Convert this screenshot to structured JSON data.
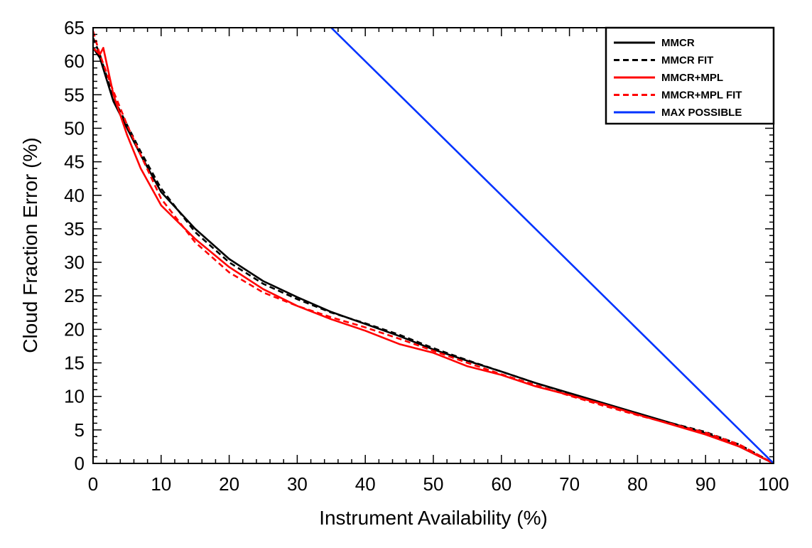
{
  "chart_data": {
    "type": "line",
    "title": "",
    "xlabel": "Instrument Availability (%)",
    "ylabel": "Cloud Fraction Error (%)",
    "xlim": [
      0,
      100
    ],
    "ylim": [
      0,
      65
    ],
    "xticks": [
      0,
      10,
      20,
      30,
      40,
      50,
      60,
      70,
      80,
      90,
      100
    ],
    "yticks": [
      0,
      5,
      10,
      15,
      20,
      25,
      30,
      35,
      40,
      45,
      50,
      55,
      60,
      65
    ],
    "grid": false,
    "legend": "top-right",
    "series": [
      {
        "name": "MMCR",
        "color": "#000000",
        "dash": "solid",
        "x": [
          0,
          1,
          3,
          5,
          7,
          10,
          15,
          20,
          25,
          30,
          35,
          40,
          45,
          50,
          55,
          60,
          65,
          70,
          75,
          80,
          85,
          90,
          95,
          100
        ],
        "y": [
          62,
          60.5,
          54,
          50,
          46,
          40.5,
          35,
          30.5,
          27.2,
          24.8,
          22.6,
          20.8,
          19,
          17,
          15.3,
          13.7,
          12,
          10.5,
          9,
          7.5,
          6,
          4.5,
          2.5,
          0
        ]
      },
      {
        "name": "MMCR FIT",
        "color": "#000000",
        "dash": "dashed",
        "x": [
          0,
          1,
          3,
          5,
          7,
          10,
          15,
          20,
          25,
          30,
          35,
          40,
          45,
          50,
          55,
          60,
          65,
          70,
          75,
          80,
          85,
          90,
          95,
          100
        ],
        "y": [
          63.5,
          61,
          54.5,
          50.5,
          46.5,
          41,
          34.5,
          30,
          26.8,
          24.5,
          22.5,
          20.9,
          19.2,
          17.2,
          15.4,
          13.7,
          12,
          10.4,
          8.9,
          7.4,
          6,
          4.7,
          2.8,
          0
        ]
      },
      {
        "name": "MMCR+MPL",
        "color": "#ff0000",
        "dash": "solid",
        "x": [
          0,
          1,
          1.5,
          3,
          5,
          7,
          10,
          15,
          20,
          25,
          30,
          35,
          40,
          45,
          50,
          55,
          60,
          65,
          70,
          75,
          80,
          85,
          90,
          95,
          100
        ],
        "y": [
          62,
          61,
          62,
          55,
          49,
          44,
          38.5,
          33.5,
          29.3,
          26,
          23.5,
          21.5,
          19.8,
          17.8,
          16.5,
          14.5,
          13.2,
          11.5,
          10.2,
          8.8,
          7.3,
          5.8,
          4.3,
          2.5,
          0
        ]
      },
      {
        "name": "MMCR+MPL FIT",
        "color": "#ff0000",
        "dash": "dashed",
        "x": [
          0,
          1,
          3,
          5,
          7,
          10,
          15,
          20,
          25,
          30,
          35,
          40,
          45,
          50,
          55,
          60,
          65,
          70,
          75,
          80,
          85,
          90,
          95,
          100
        ],
        "y": [
          64.5,
          61,
          55.5,
          50.5,
          46,
          39.5,
          33,
          28.5,
          25.5,
          23.5,
          21.8,
          20.3,
          18.6,
          16.8,
          15,
          13.3,
          11.7,
          10.1,
          8.6,
          7.2,
          5.9,
          4.6,
          2.8,
          0
        ]
      },
      {
        "name": "MAX POSSIBLE",
        "color": "#0033ff",
        "dash": "solid",
        "x": [
          35,
          100
        ],
        "y": [
          65,
          0
        ]
      }
    ]
  }
}
